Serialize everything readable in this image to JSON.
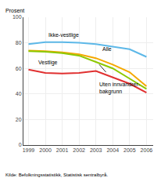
{
  "chart_data": {
    "type": "line",
    "ylabel": "Prosent",
    "source": "Kilde: Befolkningsstatistikk, Statistisk sentralbyrå.",
    "x": [
      1999,
      2000,
      2001,
      2002,
      2003,
      2004,
      2005,
      2006
    ],
    "series": [
      {
        "color": "#5db8e8",
        "values": [
          79,
          80.5,
          80.5,
          80,
          79,
          77,
          75,
          69
        ]
      },
      {
        "color": "#f5a800",
        "values": [
          74,
          73.5,
          72.5,
          71,
          68,
          63,
          57,
          46
        ]
      },
      {
        "color": "#8dc800",
        "values": [
          73.5,
          73,
          72,
          70,
          65,
          60,
          52,
          44
        ]
      },
      {
        "color": "#e03030",
        "values": [
          59,
          56.5,
          56,
          56.5,
          58,
          53,
          48,
          41
        ]
      }
    ],
    "xlim": [
      1998.7,
      2006.4
    ],
    "xticks": [
      1999,
      2000,
      2001,
      2002,
      2003,
      2004,
      2005,
      2006
    ],
    "ylim": [
      0,
      100
    ],
    "yticks": [
      0,
      20,
      40,
      60,
      80,
      100
    ],
    "grid": true,
    "annotations": [
      {
        "text": "Ikke-vestlige",
        "x": 2000.1,
        "y": 82,
        "anchor": "bottom"
      },
      {
        "text": "Alle",
        "x": 2003.3,
        "y": 71.5,
        "anchor": "bottom"
      },
      {
        "text": "Vestlige",
        "x": 1999.5,
        "y": 60.5,
        "anchor": "bottom"
      },
      {
        "text": "Uten innvandrer-\nbakgrunn",
        "x": 2003.1,
        "y": 51,
        "anchor": "top",
        "line": {
          "x": [
            2003.6,
            2003.2
          ],
          "y": [
            57,
            63
          ]
        }
      }
    ]
  }
}
